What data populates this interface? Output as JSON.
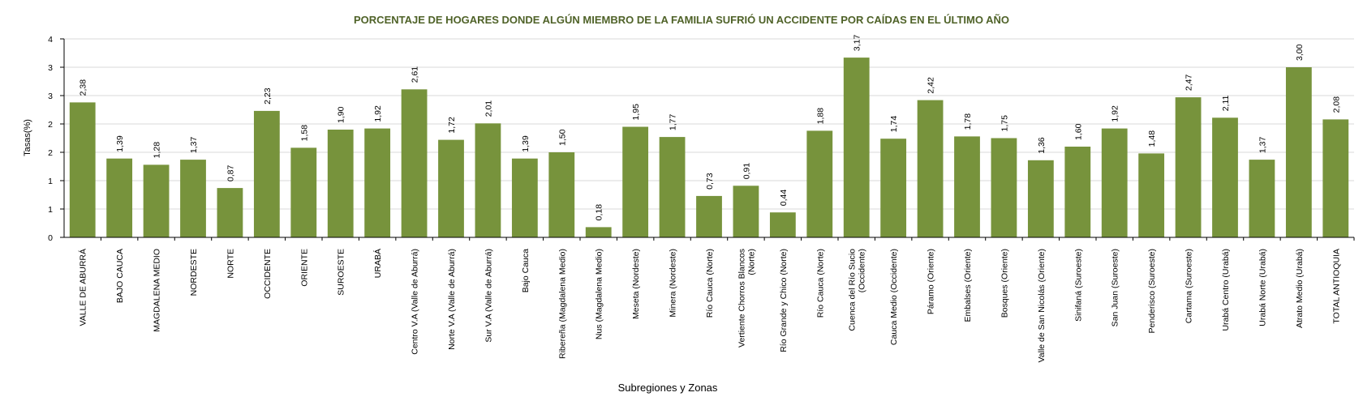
{
  "chart_data": {
    "type": "bar",
    "title": "PORCENTAJE DE HOGARES DONDE ALGÚN MIEMBRO DE LA FAMILIA SUFRIÓ UN ACCIDENTE POR  CAÍDAS EN EL ÚLTIMO AÑO",
    "xlabel": "Subregiones y Zonas",
    "ylabel": "Tasas(%)",
    "ylim": [
      0,
      3.5
    ],
    "yticks": [
      0,
      0.5,
      1,
      1.5,
      2,
      2.5,
      3,
      3.5
    ],
    "ytick_labels": [
      "0",
      "1",
      "1",
      "2",
      "2",
      "3",
      "3",
      "4"
    ],
    "grid": true,
    "bar_color": "#77933c",
    "categories": [
      [
        "VALLE DE ABURRÁ"
      ],
      [
        "BAJO CAUCA"
      ],
      [
        "MAGDALENA MEDIO"
      ],
      [
        "NORDESTE"
      ],
      [
        "NORTE"
      ],
      [
        "OCCIDENTE"
      ],
      [
        "ORIENTE"
      ],
      [
        "SUROESTE"
      ],
      [
        "URABÁ"
      ],
      [
        "Centro V.A (Valle de Aburrá)"
      ],
      [
        "Norte V.A (Valle de Aburrá)"
      ],
      [
        "Sur V.A (Valle de Aburrá)"
      ],
      [
        "Bajo Cauca"
      ],
      [
        "Ribereña  (Magdalena Medio)"
      ],
      [
        "Nus  (Magdalena Medio)"
      ],
      [
        "Meseta  (Nordeste)"
      ],
      [
        "Minera  (Nordeste)"
      ],
      [
        "Río Cauca  (Norte)"
      ],
      [
        "Vertiente Chorros Blancos",
        "(Norte)"
      ],
      [
        "Río Grande y Chico  (Norte)"
      ],
      [
        "Río Cauca (Norte)"
      ],
      [
        "Cuenca del Río Sucio",
        "(Occidente)"
      ],
      [
        "Cauca Medio  (Occidente)"
      ],
      [
        "Páramo  (Oriente)"
      ],
      [
        "Embalses  (Oriente)"
      ],
      [
        "Bosques  (Oriente)"
      ],
      [
        "Valle de San Nicolás  (Oriente)"
      ],
      [
        "Sinifaná  (Suroeste)"
      ],
      [
        "San Juan  (Suroeste)"
      ],
      [
        "Penderisco  (Suroeste)"
      ],
      [
        "Cartama  (Suroeste)"
      ],
      [
        "Urabá Centro  (Urabá)"
      ],
      [
        "Urabá Norte  (Urabá)"
      ],
      [
        "Atrato Medio  (Urabá)"
      ],
      [
        "TOTAL ANTIOQUIA"
      ]
    ],
    "values": [
      2.38,
      1.39,
      1.28,
      1.37,
      0.87,
      2.23,
      1.58,
      1.9,
      1.92,
      2.61,
      1.72,
      2.01,
      1.39,
      1.5,
      0.18,
      1.95,
      1.77,
      0.73,
      0.91,
      0.44,
      1.88,
      3.17,
      1.74,
      2.42,
      1.78,
      1.75,
      1.36,
      1.6,
      1.92,
      1.48,
      2.47,
      2.11,
      1.37,
      3.0,
      2.08
    ],
    "value_labels": [
      "2,38",
      "1,39",
      "1,28",
      "1,37",
      "0,87",
      "2,23",
      "1,58",
      "1,90",
      "1,92",
      "2,61",
      "1,72",
      "2,01",
      "1,39",
      "1,50",
      "0,18",
      "1,95",
      "1,77",
      "0,73",
      "0,91",
      "0,44",
      "1,88",
      "3,17",
      "1,74",
      "2,42",
      "1,78",
      "1,75",
      "1,36",
      "1,60",
      "1,92",
      "1,48",
      "2,47",
      "2,11",
      "1,37",
      "3,00",
      "2,08"
    ]
  }
}
